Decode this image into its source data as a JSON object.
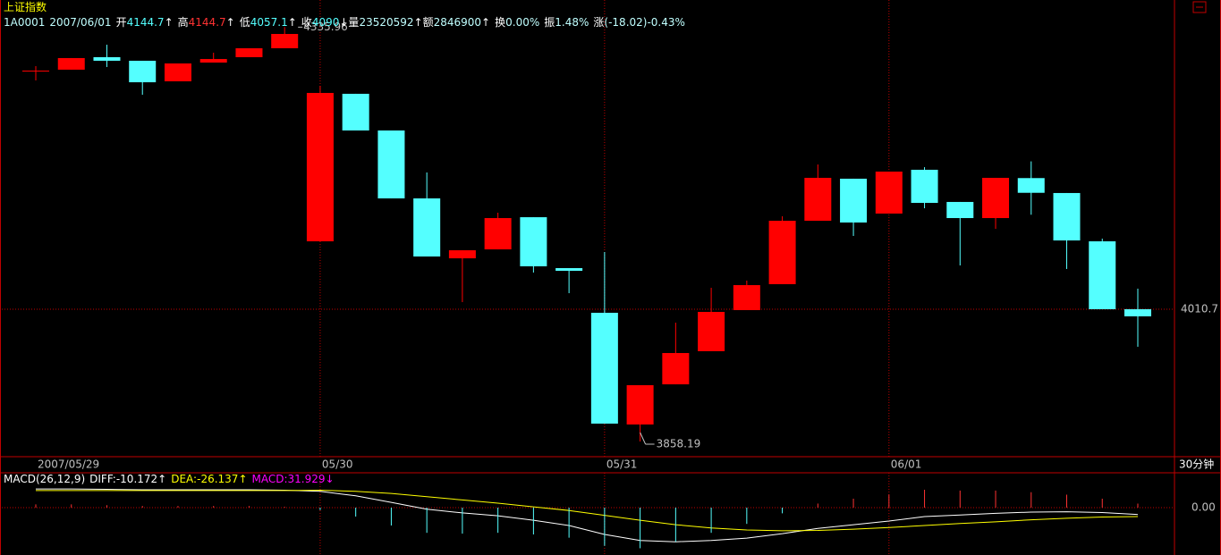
{
  "title": "上证指数",
  "header": {
    "code": "1A0001",
    "date": "2007/06/01",
    "price_fields": [
      {
        "label": "开",
        "arrow": "↑",
        "color": "#54ffff"
      },
      {
        "label": "高",
        "arrow": "↑",
        "color": "#ff3232"
      },
      {
        "label": "低",
        "arrow": "↑",
        "color": "#54ffff"
      },
      {
        "label": "收",
        "arrow": "↓",
        "color": "#54ffff"
      }
    ],
    "extra": [
      {
        "label": "量",
        "value": 23520592,
        "arrow": "↑"
      },
      {
        "label": "额",
        "value": 2846900,
        "arrow": "↑"
      },
      {
        "label": "换",
        "value": "0.00%"
      },
      {
        "label": "振",
        "value": "1.48%"
      },
      {
        "label": "涨",
        "value": "(-18.02)-0.43%"
      }
    ]
  },
  "chart_data": [
    {
      "type": "candlestick",
      "period": "30分钟",
      "categories": [
        "2007/05/29",
        null,
        null,
        null,
        null,
        null,
        null,
        null,
        "05/30",
        null,
        null,
        null,
        null,
        null,
        null,
        null,
        "05/31",
        null,
        null,
        null,
        null,
        null,
        null,
        null,
        "06/01",
        null,
        null,
        null,
        null,
        null,
        null,
        null
      ],
      "open": [
        4285.8,
        4286.9,
        4301.3,
        4297.2,
        4273.5,
        4295.1,
        4301.3,
        4311.6,
        4089.0,
        4259.1,
        4216.8,
        4138.5,
        4069.4,
        4079.7,
        4116.8,
        4058.1,
        4006.6,
        3877.8,
        3924.1,
        3962.3,
        4009.7,
        4039.6,
        4112.7,
        4161.2,
        4121.0,
        4171.5,
        4134.4,
        4115.8,
        4161.91,
        4144.7,
        4089.0,
        4010.7
      ],
      "high": [
        4291.0,
        4300.3,
        4315.7,
        4297.2,
        4294.1,
        4306.5,
        4311.6,
        4335.96,
        4268.3,
        4259.1,
        4216.8,
        4168.4,
        4078.7,
        4122.0,
        4116.8,
        4058.1,
        4076.7,
        3923.1,
        3995.2,
        4035.4,
        4043.7,
        4117.9,
        4177.6,
        4161.2,
        4169.4,
        4174.5,
        4134.4,
        4162.2,
        4181.18,
        4144.7,
        4092.1,
        4034.4
      ],
      "low": [
        4274.5,
        4286.9,
        4290.0,
        4258.0,
        4273.5,
        4295.1,
        4301.3,
        4311.6,
        4089.0,
        4216.8,
        4138.5,
        4071.5,
        4018.9,
        4079.7,
        4053.0,
        4029.2,
        3878.8,
        3858.19,
        3924.1,
        3962.3,
        4009.7,
        4039.6,
        4112.7,
        4095.2,
        4121.0,
        4127.1,
        4061.2,
        4103.4,
        4119.65,
        4057.1,
        4010.7,
        3967.4
      ],
      "close": [
        4285.8,
        4300.3,
        4297.2,
        4272.4,
        4294.1,
        4299.2,
        4311.6,
        4328.1,
        4260.1,
        4216.8,
        4138.5,
        4071.5,
        4078.7,
        4115.8,
        4060.2,
        4055.0,
        3878.8,
        3923.1,
        3960.2,
        4007.6,
        4038.5,
        4112.7,
        4162.2,
        4110.7,
        4169.4,
        4133.3,
        4115.8,
        4162.2,
        4144.94,
        4090.0,
        4010.7,
        4002.5
      ],
      "up_color": "#ff0000",
      "down_color": "#54ffff",
      "ylim": [
        3841.7,
        4367.25
      ],
      "yticks": [
        4010.7
      ],
      "grid": true
    },
    {
      "type": "macd",
      "title": "MACD(26,12,9)",
      "series": [
        {
          "name": "DIFF:",
          "arrow": "↑",
          "color": "#ffffff",
          "values": [
            46,
            46,
            45,
            44,
            44,
            44,
            44,
            43,
            40,
            29,
            13,
            -4,
            -13,
            -20,
            -31,
            -44,
            -66,
            -81,
            -84,
            -81,
            -75,
            -64,
            -51,
            -42,
            -33,
            -22,
            -18,
            -14,
            -11,
            -10.172,
            -12,
            -17
          ]
        },
        {
          "name": "DEA:",
          "arrow": "↑",
          "color": "#ffff00",
          "values": [
            42,
            42,
            42,
            42,
            42,
            42,
            42,
            42,
            43,
            40,
            35,
            27,
            19,
            11,
            2,
            -7,
            -19,
            -31,
            -42,
            -50,
            -55,
            -57,
            -56,
            -53,
            -49,
            -44,
            -39,
            -35,
            -30,
            -26.137,
            -23,
            -22
          ]
        },
        {
          "name": "MACD:",
          "arrow": "↓",
          "color": "#ff00ff",
          "values": [
            8,
            8,
            6,
            4,
            4,
            4,
            4,
            2,
            -6,
            -22,
            -44,
            -62,
            -64,
            -62,
            -66,
            -74,
            -94,
            -100,
            -84,
            -62,
            -40,
            -14,
            10,
            22,
            32,
            44,
            42,
            42,
            38,
            31.929,
            22,
            10
          ]
        }
      ],
      "bar_colors": {
        "positive": "#ff3232",
        "negative": "#54ffff"
      },
      "ylim": [
        -116.6,
        83.6
      ],
      "yticks": [
        {
          "value": 0,
          "label": "0.00"
        }
      ],
      "grid": true
    }
  ]
}
